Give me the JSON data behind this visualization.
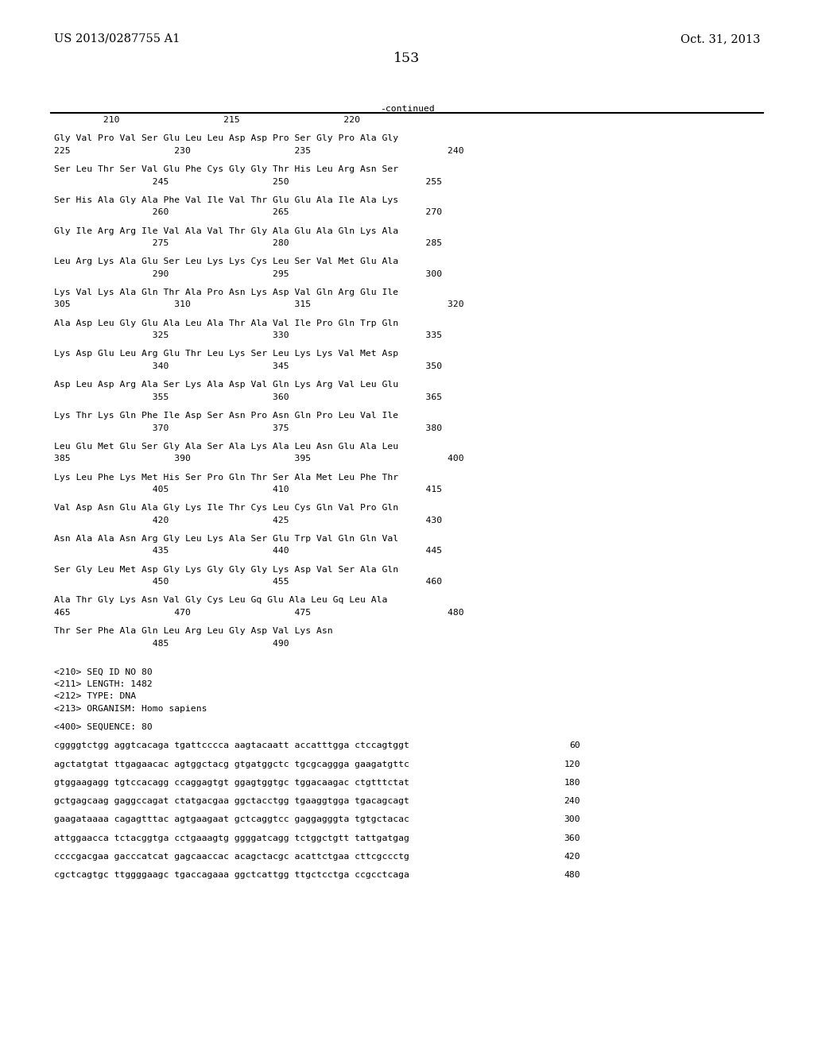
{
  "header_left": "US 2013/0287755 A1",
  "header_right": "Oct. 31, 2013",
  "page_number": "153",
  "continued_label": "-continued",
  "background_color": "#ffffff",
  "text_color": "#000000",
  "seq_blocks": [
    {
      "seq": "Gly Val Pro Val Ser Glu Leu Leu Asp Asp Pro Ser Gly Pro Ala Gly",
      "num": "225                   230                   235                         240"
    },
    {
      "seq": "Ser Leu Thr Ser Val Glu Phe Cys Gly Gly Thr His Leu Arg Asn Ser",
      "num": "                  245                   250                         255"
    },
    {
      "seq": "Ser His Ala Gly Ala Phe Val Ile Val Thr Glu Glu Ala Ile Ala Lys",
      "num": "                  260                   265                         270"
    },
    {
      "seq": "Gly Ile Arg Arg Ile Val Ala Val Thr Gly Ala Glu Ala Gln Lys Ala",
      "num": "                  275                   280                         285"
    },
    {
      "seq": "Leu Arg Lys Ala Glu Ser Leu Lys Lys Cys Leu Ser Val Met Glu Ala",
      "num": "                  290                   295                         300"
    },
    {
      "seq": "Lys Val Lys Ala Gln Thr Ala Pro Asn Lys Asp Val Gln Arg Glu Ile",
      "num": "305                   310                   315                         320"
    },
    {
      "seq": "Ala Asp Leu Gly Glu Ala Leu Ala Thr Ala Val Ile Pro Gln Trp Gln",
      "num": "                  325                   330                         335"
    },
    {
      "seq": "Lys Asp Glu Leu Arg Glu Thr Leu Lys Ser Leu Lys Lys Val Met Asp",
      "num": "                  340                   345                         350"
    },
    {
      "seq": "Asp Leu Asp Arg Ala Ser Lys Ala Asp Val Gln Lys Arg Val Leu Glu",
      "num": "                  355                   360                         365"
    },
    {
      "seq": "Lys Thr Lys Gln Phe Ile Asp Ser Asn Pro Asn Gln Pro Leu Val Ile",
      "num": "                  370                   375                         380"
    },
    {
      "seq": "Leu Glu Met Glu Ser Gly Ala Ser Ala Lys Ala Leu Asn Glu Ala Leu",
      "num": "385                   390                   395                         400"
    },
    {
      "seq": "Lys Leu Phe Lys Met His Ser Pro Gln Thr Ser Ala Met Leu Phe Thr",
      "num": "                  405                   410                         415"
    },
    {
      "seq": "Val Asp Asn Glu Ala Gly Lys Ile Thr Cys Leu Cys Gln Val Pro Gln",
      "num": "                  420                   425                         430"
    },
    {
      "seq": "Asn Ala Ala Asn Arg Gly Leu Lys Ala Ser Glu Trp Val Gln Gln Val",
      "num": "                  435                   440                         445"
    },
    {
      "seq": "Ser Gly Leu Met Asp Gly Lys Gly Gly Gly Lys Asp Val Ser Ala Gln",
      "num": "                  450                   455                         460"
    },
    {
      "seq": "Ala Thr Gly Lys Asn Val Gly Cys Leu Gq Glu Ala Leu Gq Leu Ala",
      "num": "465                   470                   475                         480"
    },
    {
      "seq": "Thr Ser Phe Ala Gln Leu Arg Leu Gly Asp Val Lys Asn",
      "num": "                  485                   490"
    }
  ],
  "meta_lines": [
    "<210> SEQ ID NO 80",
    "<211> LENGTH: 1482",
    "<212> TYPE: DNA",
    "<213> ORGANISM: Homo sapiens"
  ],
  "seq400_label": "<400> SEQUENCE: 80",
  "dna_lines": [
    {
      "seq": "cggggtctgg aggtcacaga tgattcccca aagtacaatt accatttgga ctccagtggt",
      "num": "60"
    },
    {
      "seq": "agctatgtat ttgagaacac agtggctacg gtgatggctc tgcgcaggga gaagatgttc",
      "num": "120"
    },
    {
      "seq": "gtggaagagg tgtccacagg ccaggagtgt ggagtggtgc tggacaagac ctgtttctat",
      "num": "180"
    },
    {
      "seq": "gctgagcaag gaggccagat ctatgacgaa ggctacctgg tgaaggtgga tgacagcagt",
      "num": "240"
    },
    {
      "seq": "gaagataaaa cagagtttac agtgaagaat gctcaggtcc gaggagggta tgtgctacac",
      "num": "300"
    },
    {
      "seq": "attggaacca tctacggtga cctgaaagtg ggggatcagg tctggctgtt tattgatgag",
      "num": "360"
    },
    {
      "seq": "ccccgacgaa gacccatcat gagcaaccac acagctacgc acattctgaa cttcgccctg",
      "num": "420"
    },
    {
      "seq": "cgctcagtgc ttggggaagc tgaccagaaa ggctcattgg ttgctcctga ccgcctcaga",
      "num": "480"
    }
  ],
  "ruler_line": "         210                   215                   220"
}
